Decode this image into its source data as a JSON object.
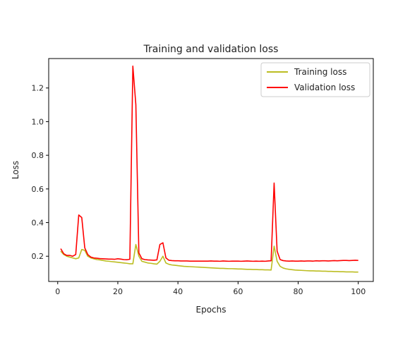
{
  "chart_data": {
    "type": "line",
    "title": "Training and validation loss",
    "xlabel": "Epochs",
    "ylabel": "Loss",
    "xlim": [
      -3,
      105
    ],
    "ylim": [
      0.05,
      1.375
    ],
    "xticks": [
      0,
      20,
      40,
      60,
      80,
      100
    ],
    "yticks": [
      0.2,
      0.4,
      0.6,
      0.8,
      1.0,
      1.2
    ],
    "ytick_labels": [
      "0.2",
      "0.4",
      "0.6",
      "0.8",
      "1.0",
      "1.2"
    ],
    "grid": false,
    "legend_position": "top-right",
    "series": [
      {
        "name": "Training loss",
        "color": "#bcbd22",
        "x": [
          1,
          2,
          3,
          4,
          5,
          6,
          7,
          8,
          9,
          10,
          11,
          12,
          13,
          14,
          15,
          16,
          17,
          18,
          19,
          20,
          21,
          22,
          23,
          24,
          25,
          26,
          27,
          28,
          29,
          30,
          31,
          32,
          33,
          34,
          35,
          36,
          37,
          38,
          39,
          40,
          41,
          42,
          43,
          44,
          45,
          46,
          47,
          48,
          49,
          50,
          51,
          52,
          53,
          54,
          55,
          56,
          57,
          58,
          59,
          60,
          61,
          62,
          63,
          64,
          65,
          66,
          67,
          68,
          69,
          70,
          71,
          72,
          73,
          74,
          75,
          76,
          77,
          78,
          79,
          80,
          81,
          82,
          83,
          84,
          85,
          86,
          87,
          88,
          89,
          90,
          91,
          92,
          93,
          94,
          95,
          96,
          97,
          98,
          99,
          100
        ],
        "y": [
          0.23,
          0.21,
          0.2,
          0.195,
          0.19,
          0.185,
          0.19,
          0.24,
          0.235,
          0.2,
          0.19,
          0.185,
          0.18,
          0.178,
          0.175,
          0.172,
          0.17,
          0.168,
          0.166,
          0.164,
          0.162,
          0.16,
          0.158,
          0.155,
          0.155,
          0.27,
          0.2,
          0.17,
          0.165,
          0.16,
          0.158,
          0.155,
          0.153,
          0.17,
          0.2,
          0.16,
          0.152,
          0.148,
          0.146,
          0.144,
          0.142,
          0.14,
          0.139,
          0.138,
          0.137,
          0.136,
          0.135,
          0.134,
          0.133,
          0.132,
          0.131,
          0.13,
          0.129,
          0.128,
          0.128,
          0.127,
          0.126,
          0.126,
          0.125,
          0.124,
          0.124,
          0.123,
          0.122,
          0.122,
          0.121,
          0.121,
          0.12,
          0.12,
          0.119,
          0.119,
          0.118,
          0.26,
          0.17,
          0.14,
          0.13,
          0.125,
          0.122,
          0.12,
          0.118,
          0.117,
          0.116,
          0.115,
          0.114,
          0.113,
          0.113,
          0.112,
          0.112,
          0.111,
          0.111,
          0.11,
          0.11,
          0.109,
          0.109,
          0.108,
          0.108,
          0.107,
          0.107,
          0.107,
          0.106,
          0.106
        ]
      },
      {
        "name": "Validation loss",
        "color": "#ff0000",
        "x": [
          1,
          2,
          3,
          4,
          5,
          6,
          7,
          8,
          9,
          10,
          11,
          12,
          13,
          14,
          15,
          16,
          17,
          18,
          19,
          20,
          21,
          22,
          23,
          24,
          25,
          26,
          27,
          28,
          29,
          30,
          31,
          32,
          33,
          34,
          35,
          36,
          37,
          38,
          39,
          40,
          41,
          42,
          43,
          44,
          45,
          46,
          47,
          48,
          49,
          50,
          51,
          52,
          53,
          54,
          55,
          56,
          57,
          58,
          59,
          60,
          61,
          62,
          63,
          64,
          65,
          66,
          67,
          68,
          69,
          70,
          71,
          72,
          73,
          74,
          75,
          76,
          77,
          78,
          79,
          80,
          81,
          82,
          83,
          84,
          85,
          86,
          87,
          88,
          89,
          90,
          91,
          92,
          93,
          94,
          95,
          96,
          97,
          98,
          99,
          100
        ],
        "y": [
          0.245,
          0.215,
          0.205,
          0.205,
          0.2,
          0.21,
          0.445,
          0.43,
          0.25,
          0.21,
          0.195,
          0.19,
          0.188,
          0.186,
          0.185,
          0.184,
          0.183,
          0.183,
          0.182,
          0.185,
          0.183,
          0.18,
          0.179,
          0.182,
          1.33,
          1.1,
          0.22,
          0.185,
          0.18,
          0.178,
          0.177,
          0.176,
          0.178,
          0.27,
          0.28,
          0.19,
          0.176,
          0.174,
          0.173,
          0.173,
          0.172,
          0.172,
          0.172,
          0.171,
          0.171,
          0.171,
          0.171,
          0.171,
          0.171,
          0.171,
          0.172,
          0.171,
          0.171,
          0.17,
          0.172,
          0.171,
          0.17,
          0.171,
          0.171,
          0.171,
          0.17,
          0.171,
          0.172,
          0.171,
          0.17,
          0.171,
          0.17,
          0.171,
          0.17,
          0.172,
          0.173,
          0.635,
          0.23,
          0.18,
          0.174,
          0.172,
          0.171,
          0.172,
          0.171,
          0.171,
          0.172,
          0.171,
          0.172,
          0.172,
          0.171,
          0.173,
          0.172,
          0.173,
          0.173,
          0.172,
          0.173,
          0.174,
          0.173,
          0.174,
          0.175,
          0.175,
          0.174,
          0.175,
          0.176,
          0.175
        ]
      }
    ]
  }
}
